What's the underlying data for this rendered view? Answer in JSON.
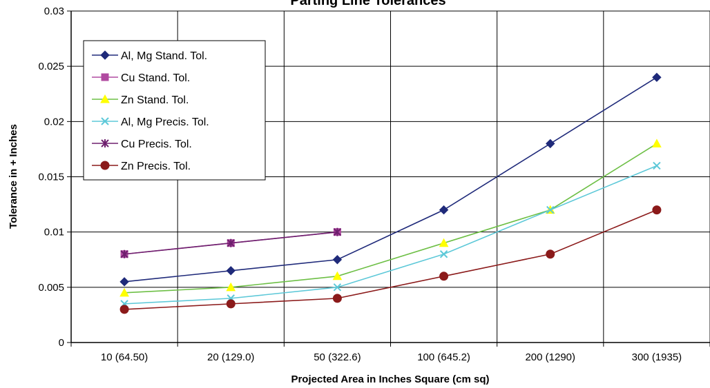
{
  "chart_data": {
    "type": "line",
    "title": "Parting Line Tolerances",
    "xlabel": "Projected Area in Inches Square (cm sq)",
    "ylabel": "Tolerance in + Inches",
    "categories": [
      "10 (64.50)",
      "20 (129.0)",
      "50 (322.6)",
      "100 (645.2)",
      "200 (1290)",
      "300 (1935)"
    ],
    "ylim": [
      0,
      0.03
    ],
    "yticks": [
      "0",
      "0.005",
      "0.01",
      "0.015",
      "0.02",
      "0.025",
      "0.03"
    ],
    "grid": true,
    "legend_position": "top-left",
    "series": [
      {
        "name": "Al, Mg Stand. Tol.",
        "color": "#1F2A7A",
        "marker": "diamond",
        "values": [
          0.0055,
          0.0065,
          0.0075,
          0.012,
          0.018,
          0.024
        ]
      },
      {
        "name": "Cu Stand. Tol.",
        "color": "#B04AA0",
        "marker": "square",
        "values": [
          0.008,
          0.009,
          0.01,
          null,
          null,
          null
        ]
      },
      {
        "name": "Zn Stand. Tol.",
        "color": "#6DBF45",
        "marker": "triangle",
        "marker_color": "#FFFF00",
        "values": [
          0.0045,
          0.005,
          0.006,
          0.009,
          0.012,
          0.018
        ]
      },
      {
        "name": "Al, Mg Precis. Tol.",
        "color": "#5CC8D8",
        "marker": "x",
        "values": [
          0.0035,
          0.004,
          0.005,
          0.008,
          0.012,
          0.016
        ]
      },
      {
        "name": "Cu Precis. Tol.",
        "color": "#6E1F6E",
        "marker": "star",
        "values": [
          0.008,
          0.009,
          0.01,
          null,
          null,
          null
        ]
      },
      {
        "name": "Zn Precis. Tol.",
        "color": "#8B1A1A",
        "marker": "circle",
        "values": [
          0.003,
          0.0035,
          0.004,
          0.006,
          0.008,
          0.012
        ]
      }
    ]
  }
}
